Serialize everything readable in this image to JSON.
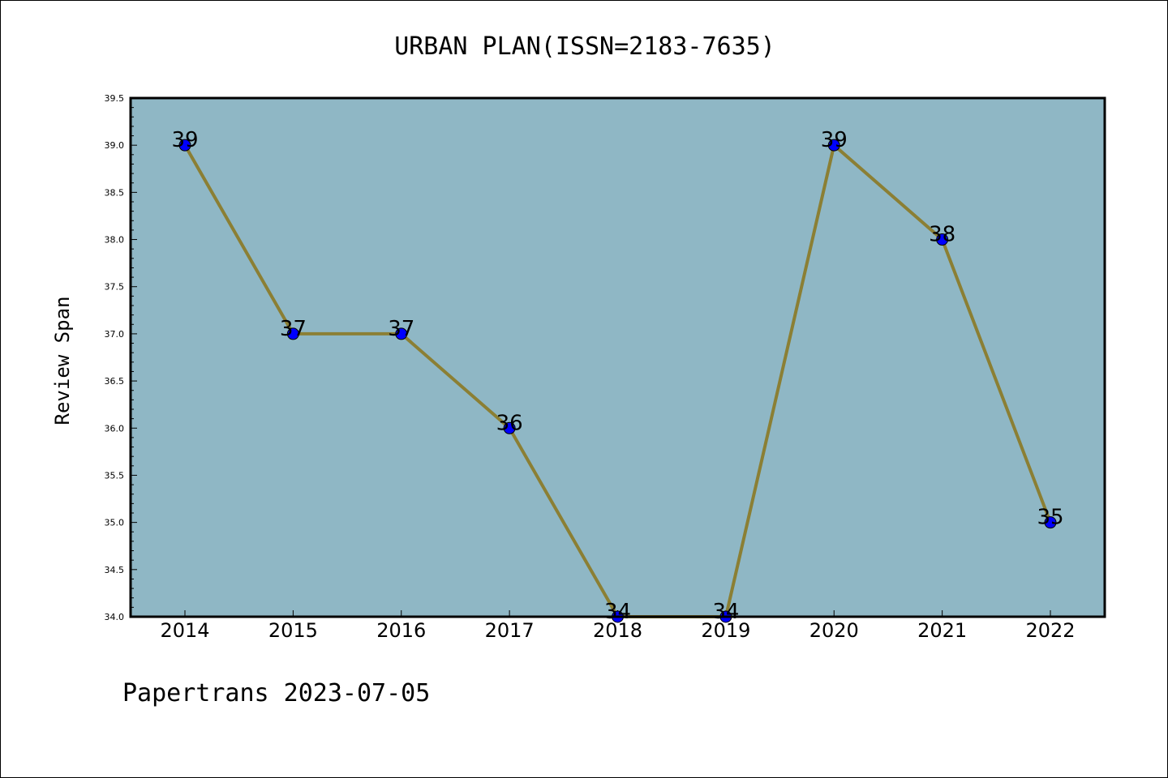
{
  "chart_data": {
    "type": "line",
    "title": "URBAN PLAN(ISSN=2183-7635)",
    "xlabel": "",
    "ylabel": "Review Span",
    "x": [
      "2014",
      "2015",
      "2016",
      "2017",
      "2018",
      "2019",
      "2020",
      "2021",
      "2022"
    ],
    "values": [
      39,
      37,
      37,
      36,
      34,
      34,
      39,
      38,
      35
    ],
    "data_labels": [
      "39",
      "37",
      "37",
      "36",
      "34",
      "34",
      "39",
      "38",
      "35"
    ],
    "ylim": [
      34.0,
      39.5
    ],
    "yticks": [
      "34.0",
      "34.5",
      "35.0",
      "35.5",
      "36.0",
      "36.5",
      "37.0",
      "37.5",
      "38.0",
      "38.5",
      "39.0",
      "39.5"
    ],
    "grid": false,
    "colors": {
      "plot_background": "#8fb7c5",
      "line": "#8b7f34",
      "marker": "#0000ff"
    }
  },
  "footer": "Papertrans 2023-07-05"
}
